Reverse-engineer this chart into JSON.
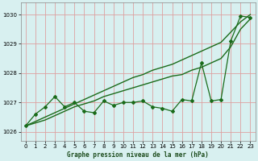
{
  "xlabel": "Graphe pression niveau de la mer (hPa)",
  "ylim": [
    1025.7,
    1030.4
  ],
  "xlim": [
    -0.5,
    23.5
  ],
  "yticks": [
    1026,
    1027,
    1028,
    1029,
    1030
  ],
  "xticks": [
    0,
    1,
    2,
    3,
    4,
    5,
    6,
    7,
    8,
    9,
    10,
    11,
    12,
    13,
    14,
    15,
    16,
    17,
    18,
    19,
    20,
    21,
    22,
    23
  ],
  "background_color": "#d8f0f0",
  "grid_color": "#dda0a0",
  "line_color": "#1a6b1a",
  "line_measured": [
    1026.2,
    1026.6,
    1026.85,
    1027.2,
    1026.85,
    1027.0,
    1026.7,
    1026.65,
    1027.05,
    1026.9,
    1027.0,
    1027.0,
    1027.05,
    1026.85,
    1026.8,
    1026.7,
    1027.1,
    1027.05,
    1028.35,
    1027.05,
    1027.1,
    1029.1,
    1029.95,
    1029.9
  ],
  "line_trend1": [
    1026.2,
    1026.35,
    1026.5,
    1026.65,
    1026.8,
    1026.95,
    1027.1,
    1027.25,
    1027.4,
    1027.55,
    1027.7,
    1027.85,
    1027.95,
    1028.1,
    1028.2,
    1028.3,
    1028.45,
    1028.6,
    1028.75,
    1028.9,
    1029.05,
    1029.4,
    1029.75,
    1030.0
  ],
  "line_trend2": [
    1026.2,
    1026.3,
    1026.4,
    1026.55,
    1026.7,
    1026.85,
    1026.95,
    1027.05,
    1027.2,
    1027.3,
    1027.4,
    1027.5,
    1027.6,
    1027.7,
    1027.8,
    1027.9,
    1027.95,
    1028.1,
    1028.2,
    1028.35,
    1028.5,
    1028.9,
    1029.5,
    1029.85
  ]
}
